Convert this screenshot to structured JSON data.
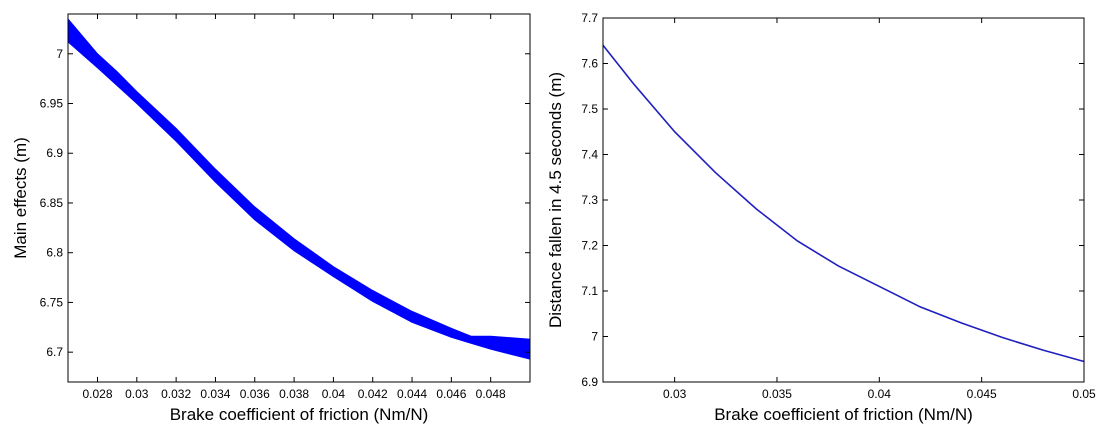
{
  "chart_data": [
    {
      "type": "area",
      "title": "",
      "xlabel": "Brake coefficient of friction (Nm/N)",
      "ylabel": "Main effects (m)",
      "xlim": [
        0.0265,
        0.05
      ],
      "ylim": [
        6.67,
        7.04
      ],
      "xticks": [
        0.028,
        0.03,
        0.032,
        0.034,
        0.036,
        0.038,
        0.04,
        0.042,
        0.044,
        0.046,
        0.048
      ],
      "yticks": [
        6.7,
        6.75,
        6.8,
        6.85,
        6.9,
        6.95,
        7.0
      ],
      "xtick_labels": [
        "0.028",
        "0.03",
        "0.032",
        "0.034",
        "0.036",
        "0.038",
        "0.04",
        "0.042",
        "0.044",
        "0.046",
        "0.048"
      ],
      "ytick_labels": [
        "6.7",
        "6.75",
        "6.8",
        "6.85",
        "6.9",
        "6.95",
        "7"
      ],
      "color": "#0000ff",
      "grid": false,
      "series": [
        {
          "x": [
            0.0265,
            0.028,
            0.029,
            0.03,
            0.032,
            0.034,
            0.036,
            0.038,
            0.04,
            0.042,
            0.044,
            0.046,
            0.047,
            0.048,
            0.05
          ],
          "lower": [
            7.012,
            6.986,
            6.968,
            6.95,
            6.912,
            6.871,
            6.833,
            6.802,
            6.776,
            6.751,
            6.73,
            6.715,
            6.709,
            6.703,
            6.693
          ],
          "upper": [
            7.035,
            7.0,
            6.982,
            6.962,
            6.925,
            6.884,
            6.846,
            6.814,
            6.786,
            6.762,
            6.741,
            6.724,
            6.716,
            6.716,
            6.713
          ]
        }
      ]
    },
    {
      "type": "line",
      "title": "",
      "xlabel": "Brake coefficient of friction (Nm/N)",
      "ylabel": "Distance fallen in 4.5 seconds  (m)",
      "xlim": [
        0.0265,
        0.05
      ],
      "ylim": [
        6.9,
        7.7
      ],
      "xticks": [
        0.03,
        0.035,
        0.04,
        0.045,
        0.05
      ],
      "yticks": [
        6.9,
        7.0,
        7.1,
        7.2,
        7.3,
        7.4,
        7.5,
        7.6,
        7.7
      ],
      "xtick_labels": [
        "0.03",
        "0.035",
        "0.04",
        "0.045",
        "0.05"
      ],
      "ytick_labels": [
        "6.9",
        "7",
        "7.1",
        "7.2",
        "7.3",
        "7.4",
        "7.5",
        "7.6",
        "7.7"
      ],
      "color": "#1f1fbf",
      "grid": false,
      "series": [
        {
          "x": [
            0.0265,
            0.028,
            0.03,
            0.032,
            0.034,
            0.036,
            0.038,
            0.04,
            0.042,
            0.044,
            0.046,
            0.048,
            0.05
          ],
          "y": [
            7.64,
            7.555,
            7.45,
            7.36,
            7.28,
            7.21,
            7.155,
            7.11,
            7.065,
            7.03,
            6.998,
            6.97,
            6.945
          ]
        }
      ]
    }
  ]
}
